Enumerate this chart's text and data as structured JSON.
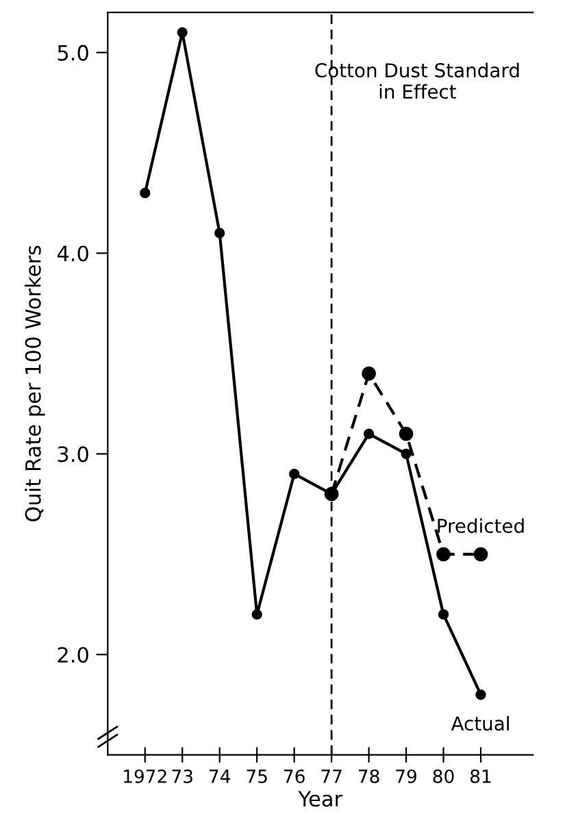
{
  "chart_data": {
    "type": "line",
    "xlabel": "Year",
    "ylabel": "Quit Rate per 100 Workers",
    "categories": [
      "1972",
      "73",
      "74",
      "75",
      "76",
      "77",
      "78",
      "79",
      "80",
      "81"
    ],
    "series": [
      {
        "name": "Actual",
        "color": "#000000",
        "line_style": "solid",
        "values": [
          4.3,
          5.1,
          4.1,
          2.2,
          2.9,
          2.8,
          3.1,
          3.0,
          2.2,
          1.8
        ]
      },
      {
        "name": "Predicted",
        "color": "#000000",
        "line_style": "dashed",
        "values": [
          null,
          null,
          null,
          null,
          null,
          2.8,
          3.4,
          3.1,
          2.5,
          2.5
        ]
      }
    ],
    "ylim": [
      1.5,
      5.2
    ],
    "yticks": [
      {
        "value": 2.0,
        "label": "2.0"
      },
      {
        "value": 3.0,
        "label": "3.0"
      },
      {
        "value": 4.0,
        "label": "4.0"
      },
      {
        "value": 5.0,
        "label": "5.0"
      }
    ],
    "ref_lines": [
      {
        "axis": "x",
        "value": "77",
        "label": "Cotton Dust Standard\nin Effect",
        "color": "#000000",
        "line_style": "dashed"
      }
    ],
    "marker": "circle",
    "grid": false,
    "legend": false
  }
}
